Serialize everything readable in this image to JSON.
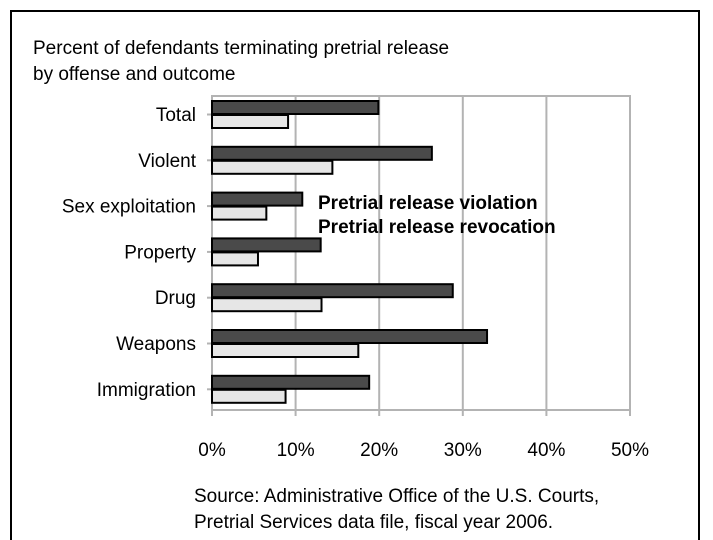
{
  "title_lines": [
    "Percent of defendants terminating pretrial release",
    "by offense and outcome"
  ],
  "source_lines": [
    "Source: Administrative Office of the U.S. Courts,",
    "Pretrial Services data file, fiscal year 2006."
  ],
  "colors": {
    "violation": "#4a4a4a",
    "revocation": "#e6e6e6",
    "gridline": "#b3b3b3",
    "outline": "#000000"
  },
  "chart_data": {
    "type": "bar",
    "orientation": "horizontal",
    "title": "Percent of defendants terminating pretrial release by offense and outcome",
    "categories": [
      "Total",
      "Violent",
      "Sex exploitation",
      "Property",
      "Drug",
      "Weapons",
      "Immigration"
    ],
    "series": [
      {
        "name": "Pretrial release violation",
        "values": [
          19.9,
          26.3,
          10.8,
          13.0,
          28.8,
          32.9,
          18.8
        ]
      },
      {
        "name": "Pretrial release revocation",
        "values": [
          9.1,
          14.4,
          6.5,
          5.5,
          13.1,
          17.5,
          8.8
        ]
      }
    ],
    "xlim": [
      0,
      50
    ],
    "xticks": [
      "0%",
      "10%",
      "20%",
      "30%",
      "40%",
      "50%"
    ],
    "tick_values": [
      0,
      10,
      20,
      30,
      40,
      50
    ],
    "grid": true,
    "legend_position": "right-of-third-category"
  }
}
